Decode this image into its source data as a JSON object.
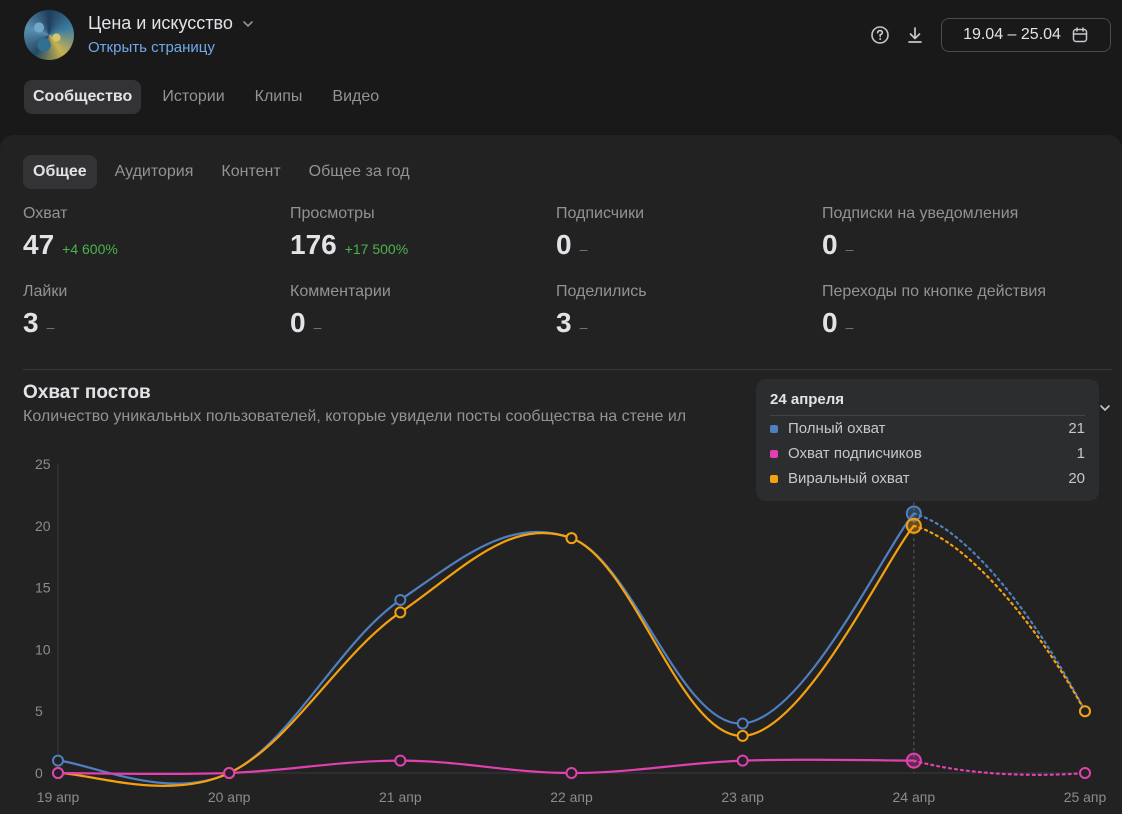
{
  "header": {
    "community_name": "Цена и искусство",
    "open_page": "Открыть страницу",
    "date_range": "19.04 – 25.04"
  },
  "main_tabs": [
    {
      "label": "Сообщество",
      "active": true
    },
    {
      "label": "Истории",
      "active": false
    },
    {
      "label": "Клипы",
      "active": false
    },
    {
      "label": "Видео",
      "active": false
    }
  ],
  "sub_tabs": [
    {
      "label": "Общее",
      "active": true
    },
    {
      "label": "Аудитория",
      "active": false
    },
    {
      "label": "Контент",
      "active": false
    },
    {
      "label": "Общее за год",
      "active": false
    }
  ],
  "metrics": [
    {
      "label": "Охват",
      "value": "47",
      "delta": "+4 600%"
    },
    {
      "label": "Просмотры",
      "value": "176",
      "delta": "+17 500%"
    },
    {
      "label": "Подписчики",
      "value": "0",
      "delta": "–"
    },
    {
      "label": "Подписки на уведомления",
      "value": "0",
      "delta": "–"
    },
    {
      "label": "Лайки",
      "value": "3",
      "delta": "–"
    },
    {
      "label": "Комментарии",
      "value": "0",
      "delta": "–"
    },
    {
      "label": "Поделились",
      "value": "3",
      "delta": "–"
    },
    {
      "label": "Переходы по кнопке действия",
      "value": "0",
      "delta": "–"
    }
  ],
  "section": {
    "title": "Охват постов",
    "subtitle": "Количество уникальных пользователей, которые увидели посты сообщества на стене ил"
  },
  "tooltip": {
    "title": "24 апреля",
    "rows": [
      {
        "name": "Полный охват",
        "value": "21",
        "color": "#4f7fbf"
      },
      {
        "name": "Охват подписчиков",
        "value": "1",
        "color": "#e040b0"
      },
      {
        "name": "Виральный охват",
        "value": "20",
        "color": "#f5a00f"
      }
    ]
  },
  "chart_data": {
    "type": "line",
    "categories": [
      "19 апр",
      "20 апр",
      "21 апр",
      "22 апр",
      "23 апр",
      "24 апр",
      "25 апр"
    ],
    "y_ticks": [
      "0",
      "5",
      "10",
      "15",
      "20",
      "25"
    ],
    "ylim": [
      0,
      25
    ],
    "grid": false,
    "series": [
      {
        "name": "Полный охват",
        "color": "#4f7fbf",
        "values": [
          1,
          0,
          14,
          19,
          4,
          21,
          5
        ]
      },
      {
        "name": "Охват подписчиков",
        "color": "#e040b0",
        "values": [
          0,
          0,
          1,
          0,
          1,
          1,
          0
        ]
      },
      {
        "name": "Виральный охват",
        "color": "#f5a00f",
        "values": [
          0,
          0,
          13,
          19,
          3,
          20,
          5
        ]
      }
    ],
    "highlight_category": "24 апр",
    "last_segment_dotted": true
  }
}
